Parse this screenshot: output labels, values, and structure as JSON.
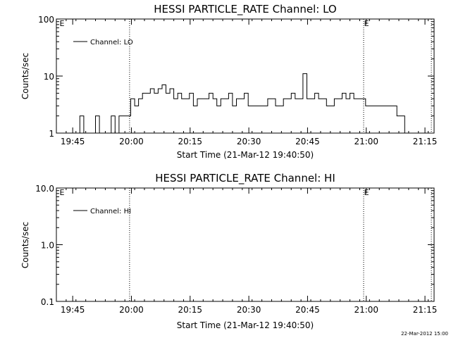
{
  "chart_data": [
    {
      "type": "line",
      "title": "HESSI PARTICLE_RATE Channel: LO",
      "xlabel": "Start Time (21-Mar-12 19:40:50)",
      "ylabel": "Counts/sec",
      "yscale": "log",
      "ylim": [
        1,
        100
      ],
      "y_ticks": [
        "1",
        "10",
        "100"
      ],
      "x_tick_labels": [
        "19:45",
        "20:00",
        "20:15",
        "20:30",
        "20:45",
        "21:00",
        "21:15"
      ],
      "x_ticks_min": [
        4.17,
        19.17,
        34.17,
        49.17,
        64.17,
        79.17,
        94.17
      ],
      "xlim_min": [
        0,
        96.5
      ],
      "legend_placement": "top-left",
      "vlines_min": [
        18.7,
        78.5,
        95.8
      ],
      "vline_markers": [
        {
          "t": 0.8,
          "label": "E"
        },
        {
          "t": 78.6,
          "label": "E"
        }
      ],
      "series": [
        {
          "name": "Channel: LO",
          "x_min": [
            0,
            1,
            2,
            3,
            4,
            5,
            6,
            7,
            8,
            9,
            10,
            11,
            12,
            13,
            14,
            15,
            16,
            17,
            18,
            19,
            20,
            21,
            22,
            23,
            24,
            25,
            26,
            27,
            28,
            29,
            30,
            31,
            32,
            33,
            34,
            35,
            36,
            37,
            38,
            39,
            40,
            41,
            42,
            43,
            44,
            45,
            46,
            47,
            48,
            49,
            50,
            51,
            52,
            53,
            54,
            55,
            56,
            57,
            58,
            59,
            60,
            61,
            62,
            63,
            64,
            65,
            66,
            67,
            68,
            69,
            70,
            71,
            72,
            73,
            74,
            75,
            76,
            77,
            78,
            79,
            80,
            81,
            82,
            83,
            84,
            85,
            86,
            87,
            88,
            89,
            90,
            91,
            92,
            93,
            94,
            95,
            96
          ],
          "y": [
            0,
            0,
            0,
            0,
            0,
            0,
            2,
            0,
            0,
            0,
            2,
            0,
            1,
            1,
            2,
            1,
            2,
            2,
            2,
            4,
            3,
            4,
            5,
            5,
            6,
            5,
            6,
            7,
            5,
            6,
            4,
            5,
            4,
            4,
            5,
            3,
            4,
            4,
            4,
            5,
            4,
            3,
            4,
            4,
            5,
            3,
            4,
            4,
            5,
            3,
            3,
            3,
            3,
            3,
            4,
            4,
            3,
            3,
            4,
            4,
            5,
            4,
            4,
            11,
            4,
            4,
            5,
            4,
            4,
            3,
            3,
            4,
            4,
            5,
            4,
            5,
            4,
            4,
            4,
            3,
            3,
            3,
            3,
            3,
            3,
            3,
            3,
            2,
            2,
            1,
            0,
            0,
            0,
            0,
            0,
            0,
            0
          ]
        }
      ]
    },
    {
      "type": "line",
      "title": "HESSI PARTICLE_RATE Channel: HI",
      "xlabel": "Start Time (21-Mar-12 19:40:50)",
      "ylabel": "Counts/sec",
      "yscale": "log",
      "ylim": [
        0.1,
        10
      ],
      "y_ticks": [
        "0.1",
        "1.0",
        "10.0"
      ],
      "x_tick_labels": [
        "19:45",
        "20:00",
        "20:15",
        "20:30",
        "20:45",
        "21:00",
        "21:15"
      ],
      "x_ticks_min": [
        4.17,
        19.17,
        34.17,
        49.17,
        64.17,
        79.17,
        94.17
      ],
      "xlim_min": [
        0,
        96.5
      ],
      "legend_placement": "top-left",
      "vlines_min": [
        18.7,
        78.5,
        95.8
      ],
      "vline_markers": [
        {
          "t": 0.8,
          "label": "E"
        },
        {
          "t": 78.6,
          "label": "E"
        }
      ],
      "series": [
        {
          "name": "Channel: HI",
          "x_min": [],
          "y": []
        }
      ]
    }
  ],
  "footer": {
    "timestamp": "22-Mar-2012 15:00"
  }
}
